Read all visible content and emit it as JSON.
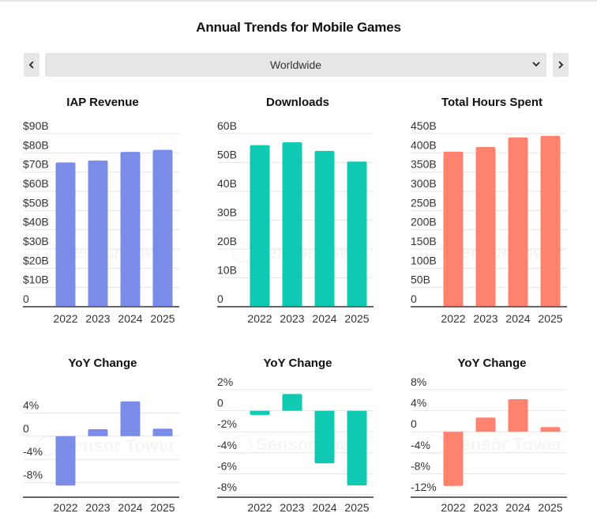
{
  "page": {
    "title": "Annual Trends for Mobile Games",
    "region_selector": {
      "selected": "Worldwide",
      "prev_icon": "chevron-left-icon",
      "next_icon": "chevron-right-icon",
      "dropdown_icon": "chevron-down-icon"
    },
    "watermark": "Sensor Tower"
  },
  "colors": {
    "iap": "#7b8ce8",
    "downloads": "#0fc9b3",
    "hours": "#ff826e"
  },
  "chart_data": [
    {
      "id": "iap-revenue",
      "type": "bar",
      "title": "IAP Revenue",
      "categories": [
        "2022",
        "2023",
        "2024",
        "2025"
      ],
      "values": [
        75,
        76,
        80.5,
        81.5
      ],
      "unit": "USD billions",
      "yticks": [
        0,
        10,
        20,
        30,
        40,
        50,
        60,
        70,
        80,
        90
      ],
      "ytick_labels": [
        "0",
        "$10B",
        "$20B",
        "$30B",
        "$40B",
        "$50B",
        "$60B",
        "$70B",
        "$80B",
        "$90B"
      ],
      "ylim": [
        0,
        90
      ],
      "grid": true,
      "color_key": "iap"
    },
    {
      "id": "downloads",
      "type": "bar",
      "title": "Downloads",
      "categories": [
        "2022",
        "2023",
        "2024",
        "2025"
      ],
      "values": [
        56,
        57,
        54,
        50.3
      ],
      "unit": "billions",
      "yticks": [
        0,
        10,
        20,
        30,
        40,
        50,
        60
      ],
      "ytick_labels": [
        "0",
        "10B",
        "20B",
        "30B",
        "40B",
        "50B",
        "60B"
      ],
      "ylim": [
        0,
        60
      ],
      "grid": true,
      "color_key": "downloads"
    },
    {
      "id": "total-hours",
      "type": "bar",
      "title": "Total Hours Spent",
      "categories": [
        "2022",
        "2023",
        "2024",
        "2025"
      ],
      "values": [
        403,
        415,
        440,
        444
      ],
      "unit": "billions of hours",
      "yticks": [
        0,
        50,
        100,
        150,
        200,
        250,
        300,
        350,
        400,
        450
      ],
      "ytick_labels": [
        "0",
        "50B",
        "100B",
        "150B",
        "200B",
        "250B",
        "300B",
        "350B",
        "400B",
        "450B"
      ],
      "ylim": [
        0,
        450
      ],
      "grid": true,
      "color_key": "hours"
    },
    {
      "id": "iap-yoy",
      "type": "bar",
      "title": "YoY Change",
      "categories": [
        "2022",
        "2023",
        "2024",
        "2025"
      ],
      "values": [
        -8.5,
        1.2,
        6.0,
        1.3
      ],
      "unit": "percent",
      "yticks": [
        -8,
        -4,
        0,
        4
      ],
      "ytick_labels": [
        "-8%",
        "-4%",
        "0",
        "4%"
      ],
      "ylim": [
        -10.5,
        8
      ],
      "grid": true,
      "color_key": "iap"
    },
    {
      "id": "downloads-yoy",
      "type": "bar",
      "title": "YoY Change",
      "categories": [
        "2022",
        "2023",
        "2024",
        "2025"
      ],
      "values": [
        -0.4,
        1.6,
        -5.0,
        -7.1
      ],
      "unit": "percent",
      "yticks": [
        -8,
        -6,
        -4,
        -2,
        0,
        2
      ],
      "ytick_labels": [
        "-8%",
        "-6%",
        "-4%",
        "-2%",
        "0",
        "2%"
      ],
      "ylim": [
        -8,
        2
      ],
      "grid": true,
      "color_key": "downloads"
    },
    {
      "id": "hours-yoy",
      "type": "bar",
      "title": "YoY Change",
      "categories": [
        "2022",
        "2023",
        "2024",
        "2025"
      ],
      "values": [
        -10.3,
        2.7,
        6.2,
        0.9
      ],
      "unit": "percent",
      "yticks": [
        -12,
        -8,
        -4,
        0,
        4,
        8
      ],
      "ytick_labels": [
        "-12%",
        "-8%",
        "-4%",
        "0",
        "4%",
        "8%"
      ],
      "ylim": [
        -12,
        8
      ],
      "grid": true,
      "color_key": "hours"
    }
  ]
}
